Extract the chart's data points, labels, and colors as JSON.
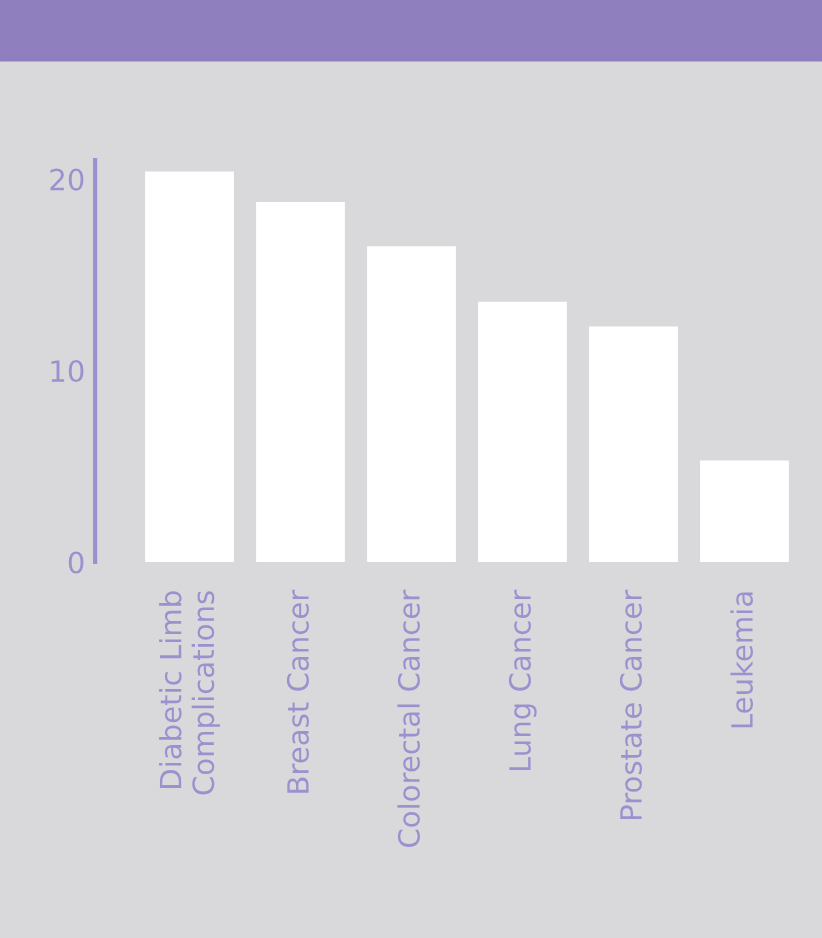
{
  "chart_data": {
    "type": "bar",
    "categories": [
      "Diabetic Limb\nComplications",
      "Breast Cancer",
      "Colorectal Cancer",
      "Lung Cancer",
      "Prostate Cancer",
      "Leukemia"
    ],
    "values": [
      20.4,
      18.8,
      16.5,
      13.6,
      12.3,
      5.3
    ],
    "color": "#ffffff",
    "ylim": [
      0,
      21
    ],
    "yticks": [
      0,
      10,
      20
    ],
    "grid": false
  }
}
